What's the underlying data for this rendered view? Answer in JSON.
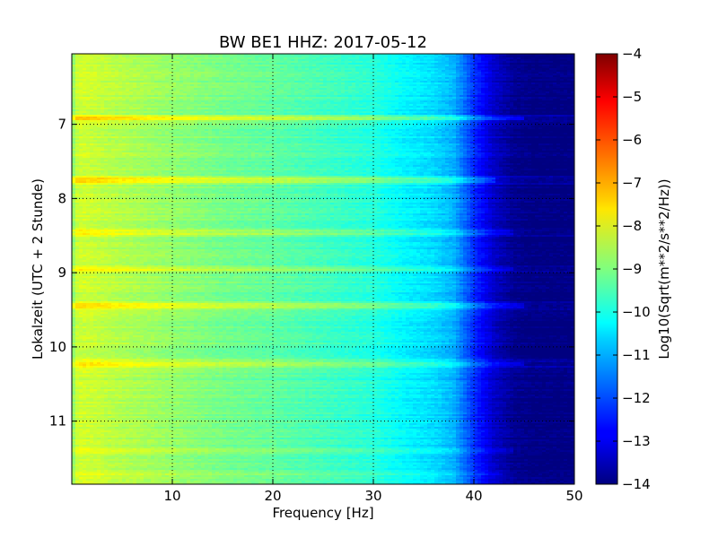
{
  "chart_data": {
    "type": "heatmap",
    "title": "BW BE1 HHZ: 2017-05-12",
    "xlabel": "Frequency [Hz]",
    "ylabel": "Lokalzeit (UTC + 2 Stunde)",
    "xlim": [
      0,
      50
    ],
    "ylim": [
      6.05,
      11.85
    ],
    "y_inverted": true,
    "x_ticks": [
      10,
      20,
      30,
      40,
      50
    ],
    "x_tick_labels": [
      "10",
      "20",
      "30",
      "40",
      "50"
    ],
    "y_ticks": [
      7,
      8,
      9,
      10,
      11
    ],
    "y_tick_labels": [
      "7",
      "8",
      "9",
      "10",
      "11"
    ],
    "grid": true,
    "colormap": "jet",
    "colorbar": {
      "label": "Log10(Sqrt(m**2/s**2/Hz))",
      "range": [
        -14,
        -4
      ],
      "ticks": [
        -4,
        -5,
        -6,
        -7,
        -8,
        -9,
        -10,
        -11,
        -12,
        -13,
        -14
      ],
      "tick_labels": [
        "−4",
        "−5",
        "−6",
        "−7",
        "−8",
        "−9",
        "−10",
        "−11",
        "−12",
        "−13",
        "−14"
      ]
    },
    "base_spectrum": {
      "frequency_hz": [
        0,
        0.5,
        1,
        3,
        5,
        10,
        15,
        20,
        25,
        30,
        33,
        36,
        38,
        40,
        42,
        44,
        46,
        50
      ],
      "level": [
        -9.0,
        -8.3,
        -8.2,
        -8.35,
        -8.5,
        -8.8,
        -9.1,
        -9.3,
        -9.6,
        -9.9,
        -10.3,
        -10.6,
        -11.0,
        -12.3,
        -13.3,
        -13.85,
        -14.0,
        -14.0
      ]
    },
    "strong_bands": [
      {
        "time": 6.92,
        "level_offset": 0.9,
        "max_frequency_hz": 45
      },
      {
        "time": 7.75,
        "level_offset": 0.9,
        "max_frequency_hz": 42
      },
      {
        "time": 8.45,
        "level_offset": 0.6,
        "max_frequency_hz": 44
      },
      {
        "time": 8.95,
        "level_offset": 0.6,
        "max_frequency_hz": 44
      },
      {
        "time": 9.45,
        "level_offset": 0.7,
        "max_frequency_hz": 45
      },
      {
        "time": 10.23,
        "level_offset": 0.9,
        "max_frequency_hz": 45
      },
      {
        "time": 11.4,
        "level_offset": 0.3,
        "max_frequency_hz": 44
      },
      {
        "time": 11.72,
        "level_offset": 0.3,
        "max_frequency_hz": 43
      }
    ]
  }
}
